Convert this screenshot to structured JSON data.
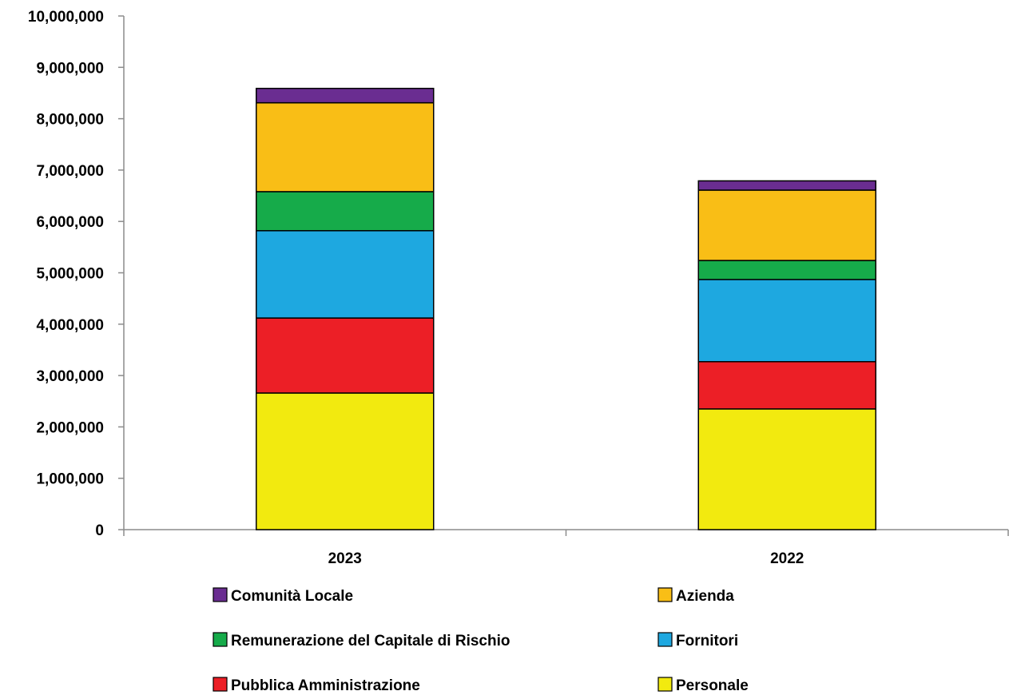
{
  "chart_data": {
    "type": "bar",
    "stacked": true,
    "title": "",
    "xlabel": "",
    "ylabel": "",
    "categories": [
      "2023",
      "2022"
    ],
    "ylim": [
      0,
      10000000
    ],
    "yticks": [
      0,
      1000000,
      2000000,
      3000000,
      4000000,
      5000000,
      6000000,
      7000000,
      8000000,
      9000000,
      10000000
    ],
    "ytick_labels": [
      "0",
      "1,000,000",
      "2,000,000",
      "3,000,000",
      "4,000,000",
      "5,000,000",
      "6,000,000",
      "7,000,000",
      "8,000,000",
      "9,000,000",
      "10,000,000"
    ],
    "grid": false,
    "legend_position": "bottom",
    "series": [
      {
        "name": "Personale",
        "color": "#f2ea0f",
        "values": [
          2660000,
          2350000
        ]
      },
      {
        "name": "Pubblica Amministrazione",
        "color": "#ec1f26",
        "values": [
          1460000,
          920000
        ]
      },
      {
        "name": "Fornitori",
        "color": "#1ea8e0",
        "values": [
          1700000,
          1600000
        ]
      },
      {
        "name": "Remunerazione del Capitale di Rischio",
        "color": "#16ab4a",
        "values": [
          760000,
          370000
        ]
      },
      {
        "name": "Azienda",
        "color": "#f9be16",
        "values": [
          1730000,
          1370000
        ]
      },
      {
        "name": "Comunità Locale",
        "color": "#6a2d91",
        "values": [
          280000,
          180000
        ]
      }
    ],
    "legend_order": [
      "Comunità Locale",
      "Azienda",
      "Remunerazione del Capitale di Rischio",
      "Fornitori",
      "Pubblica Amministrazione",
      "Personale"
    ]
  }
}
